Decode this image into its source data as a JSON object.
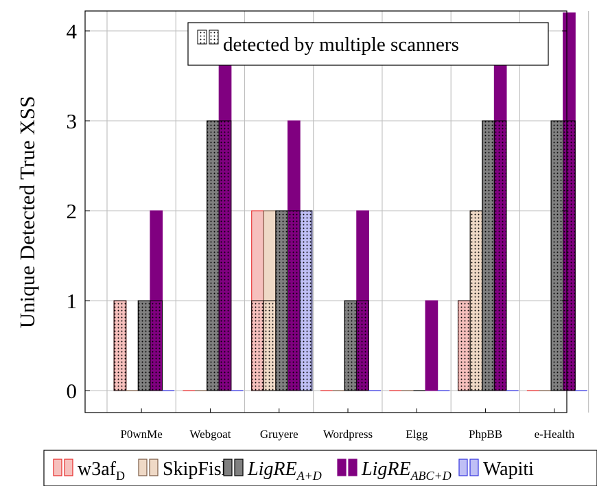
{
  "chart_data": {
    "type": "bar",
    "ylabel": "Unique Detected True XSS",
    "ylim": [
      -0.25,
      4.2
    ],
    "yticks": [
      0,
      1,
      2,
      3,
      4
    ],
    "grid": true,
    "categories": [
      "P0wnMe",
      "Webgoat",
      "Gruyere",
      "Wordpress",
      "Elgg",
      "PhpBB",
      "e-Health"
    ],
    "series": [
      {
        "name": "Wapiti",
        "color": "#bfbff5",
        "edge": "#3535e0",
        "values": [
          0,
          0,
          2,
          0,
          0,
          0,
          0
        ],
        "multi": [
          0,
          0,
          2,
          0,
          0,
          0,
          0
        ]
      },
      {
        "name": "w3af",
        "name_sub": "D",
        "color": "#f6c0bd",
        "edge": "#e62a2a",
        "values": [
          1,
          0,
          2,
          0,
          0,
          1,
          0
        ],
        "multi": [
          1,
          0,
          1,
          0,
          0,
          1,
          0
        ]
      },
      {
        "name": "SkipFish",
        "color": "#efd9c6",
        "edge": "#7a5a44",
        "values": [
          0,
          0,
          2,
          0,
          0,
          2,
          0
        ],
        "multi": [
          0,
          0,
          1,
          0,
          0,
          2,
          0
        ]
      },
      {
        "name": "LigRE",
        "name_sub": "A+D",
        "italic": true,
        "color": "#808080",
        "edge": "#000000",
        "values": [
          1,
          3,
          2,
          1,
          0,
          3,
          3
        ],
        "multi": [
          1,
          3,
          2,
          1,
          0,
          3,
          3
        ]
      },
      {
        "name": "LigRE",
        "name_sub": "ABC+D",
        "italic": true,
        "color": "#800080",
        "edge": "#800080",
        "values": [
          2,
          4,
          3,
          2,
          1,
          4,
          4.2
        ],
        "multi": [
          1,
          3,
          2,
          1,
          0,
          3,
          3
        ]
      }
    ],
    "series_order": [
      1,
      2,
      3,
      4,
      0
    ],
    "annotation": "detected by multiple scanners",
    "legend_position": "bottom"
  }
}
